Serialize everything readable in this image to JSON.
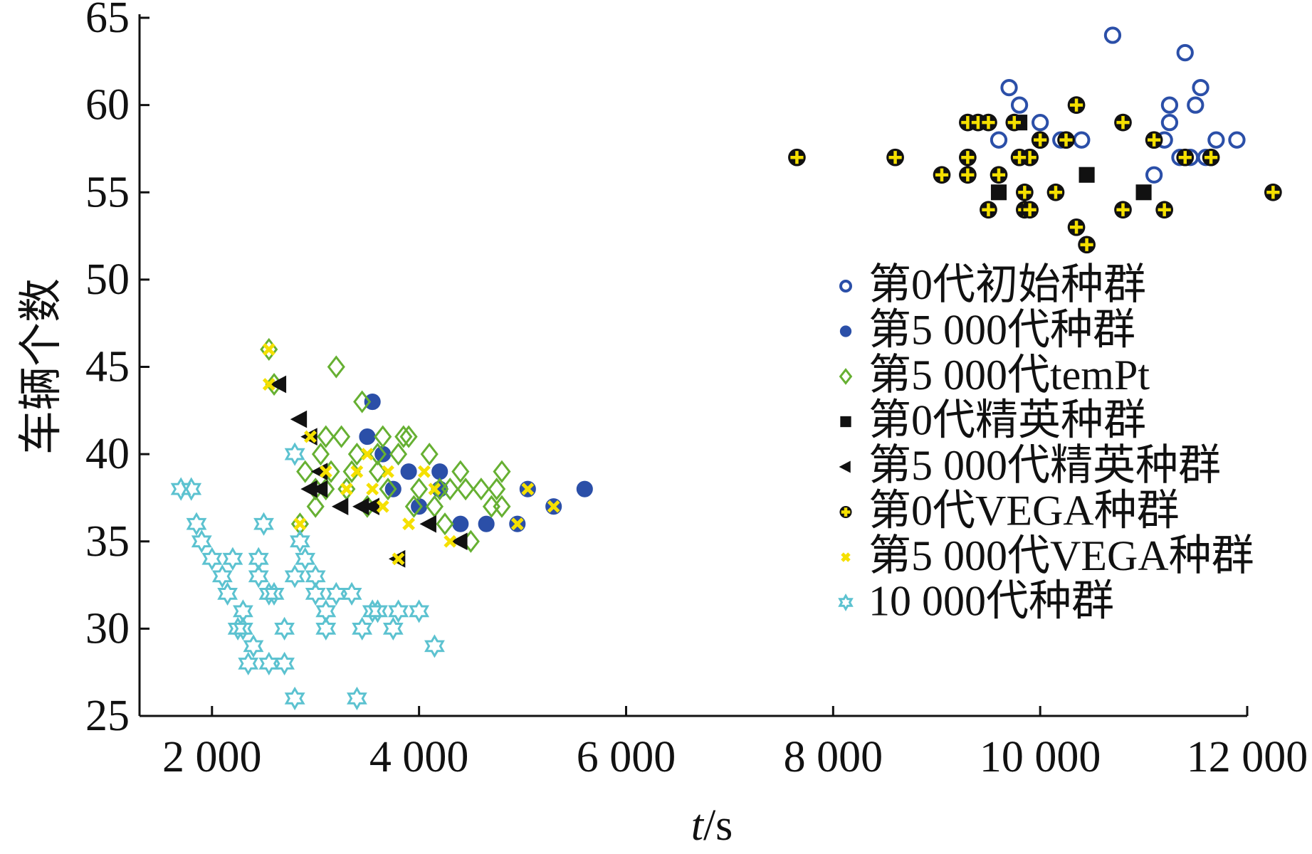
{
  "chart_data": {
    "type": "scatter",
    "title": "",
    "xlabel": "t/s",
    "xlabel_italic": "t",
    "xlabel_unit": "/s",
    "ylabel": "车辆个数",
    "xlim": [
      1300,
      12000
    ],
    "ylim": [
      25,
      65
    ],
    "xticks": [
      2000,
      4000,
      6000,
      8000,
      10000,
      12000
    ],
    "xtick_labels": [
      "2 000",
      "4 000",
      "6 000",
      "8 000",
      "10 000",
      "12 000"
    ],
    "yticks": [
      25,
      30,
      35,
      40,
      45,
      50,
      55,
      60,
      65
    ],
    "ytick_labels": [
      "25",
      "30",
      "35",
      "40",
      "45",
      "50",
      "55",
      "60",
      "65"
    ],
    "grid": false,
    "legend_position": "right",
    "series": [
      {
        "name": "第0代初始种群",
        "marker": "open-circle",
        "color": "#2b4fa8",
        "points": [
          [
            10700,
            64
          ],
          [
            11400,
            63
          ],
          [
            11550,
            61
          ],
          [
            11500,
            60
          ],
          [
            11250,
            60
          ],
          [
            11250,
            59
          ],
          [
            10000,
            59
          ],
          [
            9700,
            61
          ],
          [
            10350,
            60
          ],
          [
            11200,
            58
          ],
          [
            11350,
            57
          ],
          [
            11700,
            58
          ],
          [
            11900,
            58
          ],
          [
            11100,
            56
          ],
          [
            9800,
            60
          ],
          [
            10200,
            58
          ],
          [
            10400,
            58
          ],
          [
            9600,
            58
          ],
          [
            11450,
            57
          ],
          [
            11600,
            57
          ]
        ]
      },
      {
        "name": "第5 000代种群",
        "marker": "filled-circle",
        "color": "#2b4fa8",
        "points": [
          [
            5600,
            38
          ],
          [
            4400,
            36
          ],
          [
            4650,
            36
          ],
          [
            4950,
            36
          ],
          [
            5300,
            37
          ],
          [
            3900,
            39
          ],
          [
            3500,
            41
          ],
          [
            3550,
            43
          ],
          [
            3650,
            40
          ],
          [
            4200,
            38
          ],
          [
            4000,
            37
          ],
          [
            5050,
            38
          ],
          [
            3750,
            38
          ],
          [
            4200,
            39
          ]
        ]
      },
      {
        "name": "第5 000代temPt",
        "marker": "open-diamond",
        "color": "#66b032",
        "points": [
          [
            3200,
            45
          ],
          [
            3450,
            43
          ],
          [
            2550,
            46
          ],
          [
            2600,
            44
          ],
          [
            3100,
            41
          ],
          [
            3250,
            41
          ],
          [
            3400,
            40
          ],
          [
            3600,
            39
          ],
          [
            3800,
            40
          ],
          [
            3900,
            41
          ],
          [
            4100,
            40
          ],
          [
            4400,
            39
          ],
          [
            4800,
            39
          ],
          [
            4750,
            38
          ],
          [
            4450,
            38
          ],
          [
            4600,
            38
          ],
          [
            4800,
            37
          ],
          [
            3000,
            37
          ],
          [
            3100,
            38
          ],
          [
            2900,
            39
          ],
          [
            3300,
            38
          ],
          [
            3500,
            37
          ],
          [
            3700,
            38
          ],
          [
            4000,
            38
          ],
          [
            4150,
            37
          ],
          [
            4250,
            36
          ],
          [
            4500,
            35
          ],
          [
            3950,
            37
          ],
          [
            3600,
            40
          ],
          [
            3850,
            41
          ],
          [
            4300,
            38
          ],
          [
            2850,
            36
          ],
          [
            3050,
            40
          ],
          [
            3350,
            39
          ],
          [
            4700,
            37
          ],
          [
            3000,
            38
          ],
          [
            3150,
            39
          ],
          [
            3650,
            41
          ],
          [
            4200,
            38
          ]
        ]
      },
      {
        "name": "第0代精英种群",
        "marker": "filled-square",
        "color": "#111111",
        "points": [
          [
            9800,
            59
          ],
          [
            10450,
            56
          ],
          [
            11000,
            55
          ],
          [
            9600,
            55
          ]
        ]
      },
      {
        "name": "第5 000代精英种群",
        "marker": "left-triangle",
        "color": "#111111",
        "points": [
          [
            2850,
            42
          ],
          [
            2950,
            41
          ],
          [
            2950,
            38
          ],
          [
            3050,
            38
          ],
          [
            3250,
            37
          ],
          [
            3450,
            37
          ],
          [
            3550,
            37
          ],
          [
            3800,
            34
          ],
          [
            4100,
            36
          ],
          [
            4400,
            35
          ],
          [
            2650,
            44
          ],
          [
            3050,
            39
          ]
        ]
      },
      {
        "name": "第0代VEGA种群",
        "marker": "plus",
        "color": "#f5e000",
        "points": [
          [
            7650,
            57
          ],
          [
            8600,
            57
          ],
          [
            9050,
            56
          ],
          [
            9300,
            57
          ],
          [
            9300,
            59
          ],
          [
            9400,
            59
          ],
          [
            9500,
            59
          ],
          [
            9300,
            56
          ],
          [
            9600,
            56
          ],
          [
            9850,
            55
          ],
          [
            9850,
            54
          ],
          [
            9500,
            54
          ],
          [
            9900,
            57
          ],
          [
            10150,
            55
          ],
          [
            10350,
            53
          ],
          [
            10450,
            52
          ],
          [
            10800,
            54
          ],
          [
            11200,
            54
          ],
          [
            12250,
            55
          ],
          [
            9750,
            59
          ],
          [
            10000,
            58
          ],
          [
            10250,
            58
          ],
          [
            10350,
            60
          ],
          [
            11100,
            58
          ],
          [
            11400,
            57
          ],
          [
            11650,
            57
          ],
          [
            10800,
            59
          ],
          [
            9800,
            57
          ],
          [
            9900,
            54
          ]
        ]
      },
      {
        "name": "第5 000代VEGA种群",
        "marker": "x",
        "color": "#f5e000",
        "points": [
          [
            2550,
            46
          ],
          [
            2550,
            44
          ],
          [
            2950,
            41
          ],
          [
            3100,
            39
          ],
          [
            3300,
            38
          ],
          [
            3400,
            39
          ],
          [
            3550,
            38
          ],
          [
            3700,
            39
          ],
          [
            3900,
            36
          ],
          [
            4150,
            38
          ],
          [
            4050,
            39
          ],
          [
            4300,
            35
          ],
          [
            5050,
            38
          ],
          [
            4950,
            36
          ],
          [
            5300,
            37
          ],
          [
            3500,
            40
          ],
          [
            2850,
            36
          ],
          [
            3800,
            34
          ],
          [
            3650,
            37
          ]
        ]
      },
      {
        "name": "10 000代种群",
        "marker": "open-star",
        "color": "#5cc2d0",
        "points": [
          [
            1700,
            38
          ],
          [
            1800,
            38
          ],
          [
            1850,
            36
          ],
          [
            1900,
            35
          ],
          [
            2000,
            34
          ],
          [
            2100,
            33
          ],
          [
            2150,
            32
          ],
          [
            2250,
            30
          ],
          [
            2300,
            31
          ],
          [
            2400,
            29
          ],
          [
            2450,
            33
          ],
          [
            2550,
            32
          ],
          [
            2700,
            30
          ],
          [
            2800,
            33
          ],
          [
            2850,
            35
          ],
          [
            2900,
            34
          ],
          [
            3000,
            32
          ],
          [
            3100,
            31
          ],
          [
            3200,
            32
          ],
          [
            3350,
            32
          ],
          [
            3450,
            30
          ],
          [
            3550,
            31
          ],
          [
            3750,
            30
          ],
          [
            4000,
            31
          ],
          [
            4150,
            29
          ],
          [
            2550,
            28
          ],
          [
            2700,
            28
          ],
          [
            2800,
            26
          ],
          [
            3400,
            26
          ],
          [
            2350,
            28
          ],
          [
            2200,
            34
          ],
          [
            2500,
            36
          ],
          [
            2450,
            34
          ],
          [
            2300,
            30
          ],
          [
            2800,
            40
          ],
          [
            2600,
            32
          ],
          [
            3000,
            33
          ],
          [
            3100,
            30
          ],
          [
            3600,
            31
          ],
          [
            3800,
            31
          ]
        ]
      }
    ]
  }
}
